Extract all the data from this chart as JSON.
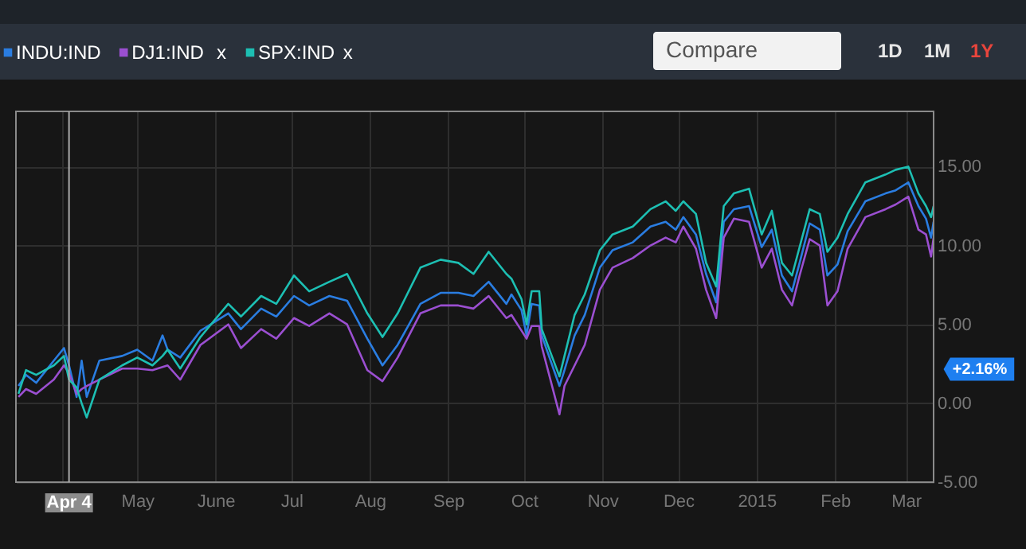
{
  "chart_data": {
    "type": "line",
    "x": [
      "2014-03-15",
      "2014-03-18",
      "2014-03-22",
      "2014-03-29",
      "2014-04-02",
      "2014-04-04",
      "2014-04-07",
      "2014-04-09",
      "2014-04-11",
      "2014-04-16",
      "2014-04-25",
      "2014-05-01",
      "2014-05-07",
      "2014-05-11",
      "2014-05-13",
      "2014-05-18",
      "2014-05-26",
      "2014-06-06",
      "2014-06-11",
      "2014-06-19",
      "2014-06-25",
      "2014-07-02",
      "2014-07-08",
      "2014-07-16",
      "2014-07-23",
      "2014-07-31",
      "2014-08-06",
      "2014-08-12",
      "2014-08-21",
      "2014-08-29",
      "2014-09-05",
      "2014-09-11",
      "2014-09-17",
      "2014-09-24",
      "2014-09-26",
      "2014-09-30",
      "2014-10-02",
      "2014-10-04",
      "2014-10-07",
      "2014-10-08",
      "2014-10-15",
      "2014-10-17",
      "2014-10-21",
      "2014-10-25",
      "2014-10-31",
      "2014-11-05",
      "2014-11-13",
      "2014-11-20",
      "2014-11-26",
      "2014-11-30",
      "2014-12-03",
      "2014-12-08",
      "2014-12-12",
      "2014-12-16",
      "2014-12-19",
      "2014-12-23",
      "2014-12-29",
      "2015-01-03",
      "2015-01-07",
      "2015-01-11",
      "2015-01-15",
      "2015-01-18",
      "2015-01-22",
      "2015-01-26",
      "2015-01-29",
      "2015-02-02",
      "2015-02-06",
      "2015-02-13",
      "2015-02-21",
      "2015-02-25",
      "2015-03-02",
      "2015-03-06",
      "2015-03-09",
      "2015-03-11",
      "2015-03-12"
    ],
    "series": [
      {
        "name": "INDU:IND",
        "color": "#2a7de1",
        "values": [
          1.1,
          1.8,
          1.3,
          2.7,
          3.5,
          2.4,
          0.4,
          2.7,
          0.4,
          2.7,
          3.0,
          3.4,
          2.7,
          4.3,
          3.4,
          2.9,
          4.6,
          5.7,
          4.7,
          6.0,
          5.5,
          6.8,
          6.2,
          6.8,
          6.5,
          4.1,
          2.4,
          3.7,
          6.3,
          7.0,
          7.0,
          6.8,
          7.7,
          6.3,
          6.9,
          5.9,
          4.3,
          6.3,
          6.2,
          4.3,
          1.1,
          2.1,
          4.3,
          5.6,
          8.6,
          9.7,
          10.2,
          11.2,
          11.5,
          11.0,
          11.8,
          10.7,
          8.2,
          6.4,
          11.5,
          12.3,
          12.5,
          9.9,
          11.0,
          8.1,
          7.1,
          8.9,
          11.4,
          11.0,
          8.1,
          8.8,
          10.9,
          12.8,
          13.3,
          13.5,
          14.0,
          12.5,
          11.7,
          10.5,
          11.5
        ]
      },
      {
        "name": "DJ1:IND",
        "color": "#9b4fd1",
        "values": [
          0.4,
          0.9,
          0.6,
          1.5,
          2.4,
          1.9,
          0.6,
          0.9,
          1.1,
          1.5,
          2.2,
          2.2,
          2.1,
          2.3,
          2.4,
          1.5,
          3.7,
          5.0,
          3.5,
          4.7,
          4.1,
          5.4,
          4.9,
          5.7,
          5.0,
          2.1,
          1.4,
          2.9,
          5.7,
          6.2,
          6.2,
          6.0,
          6.8,
          5.4,
          5.6,
          4.6,
          4.1,
          4.9,
          4.9,
          3.6,
          -0.7,
          1.1,
          2.4,
          3.7,
          7.2,
          8.6,
          9.2,
          10.0,
          10.5,
          10.2,
          11.2,
          9.8,
          7.2,
          5.4,
          10.5,
          11.7,
          11.5,
          8.6,
          9.8,
          7.2,
          6.2,
          8.1,
          10.4,
          10.0,
          6.2,
          7.1,
          9.8,
          11.8,
          12.3,
          12.6,
          13.1,
          11.0,
          10.7,
          9.3,
          10.5
        ]
      },
      {
        "name": "SPX:IND",
        "color": "#1dbfb3",
        "values": [
          0.6,
          2.1,
          1.8,
          2.4,
          3.0,
          1.5,
          1.0,
          0.0,
          -0.9,
          1.5,
          2.4,
          2.9,
          2.4,
          3.0,
          3.4,
          2.2,
          4.2,
          6.3,
          5.5,
          6.8,
          6.3,
          8.1,
          7.1,
          7.7,
          8.2,
          5.7,
          4.2,
          5.7,
          8.6,
          9.1,
          8.9,
          8.2,
          9.6,
          8.2,
          7.9,
          6.6,
          5.0,
          7.1,
          7.1,
          4.7,
          1.7,
          3.0,
          5.6,
          6.9,
          9.7,
          10.7,
          11.2,
          12.3,
          12.8,
          12.2,
          12.8,
          12.0,
          8.9,
          7.4,
          12.5,
          13.3,
          13.6,
          10.7,
          12.2,
          8.9,
          8.1,
          9.9,
          12.3,
          12.0,
          9.6,
          10.5,
          12.0,
          14.0,
          14.5,
          14.8,
          15.0,
          13.3,
          12.5,
          11.8,
          12.5
        ]
      }
    ],
    "xlim": [
      "2014-03-14",
      "2015-03-12"
    ],
    "xticks": [
      {
        "value": "2014-04-01",
        "label": null
      },
      {
        "value": "2014-05-01",
        "label": "May"
      },
      {
        "value": "2014-06-01",
        "label": "June"
      },
      {
        "value": "2014-07-01",
        "label": "Jul"
      },
      {
        "value": "2014-08-01",
        "label": "Aug"
      },
      {
        "value": "2014-09-01",
        "label": "Sep"
      },
      {
        "value": "2014-10-01",
        "label": "Oct"
      },
      {
        "value": "2014-11-01",
        "label": "Nov"
      },
      {
        "value": "2014-12-01",
        "label": "Dec"
      },
      {
        "value": "2015-01-01",
        "label": "2015"
      },
      {
        "value": "2015-02-01",
        "label": "Feb"
      },
      {
        "value": "2015-03-01",
        "label": "Mar"
      }
    ],
    "ylim": [
      -5,
      18.5
    ],
    "yticks": [
      {
        "value": -5,
        "label": "-5.00"
      },
      {
        "value": 0,
        "label": "0.00"
      },
      {
        "value": 5,
        "label": "5.00"
      },
      {
        "value": 10,
        "label": "10.00"
      },
      {
        "value": 15,
        "label": "15.00"
      }
    ],
    "grid": true,
    "legend": "top left",
    "line_style": "solid",
    "ref_lines": [
      {
        "axis": "x",
        "value": "2014-04-04",
        "label": "Apr 4",
        "color": "#aaaaaa"
      }
    ],
    "annotations": [
      "x",
      "x",
      "Compare",
      "1D",
      "1M",
      "1Y",
      "+2.16%"
    ]
  }
}
